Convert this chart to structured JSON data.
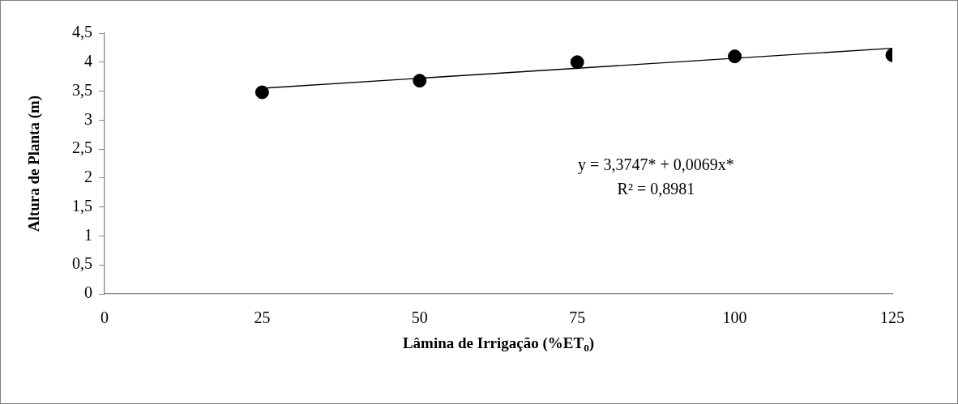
{
  "chart_data": {
    "type": "scatter",
    "xlabel": "Lâmina de Irrigação (%ET$_{0}$)",
    "ylabel": "Altura de Planta (m)",
    "x": [
      25,
      50,
      75,
      100,
      125
    ],
    "series": [
      {
        "color": "#000000",
        "values": [
          3.48,
          3.68,
          4.0,
          4.1,
          4.12
        ]
      },
      {
        "type": "line",
        "color": "#000000",
        "x": [
          25,
          125
        ],
        "values": [
          3.55,
          4.24
        ],
        "marker": "none"
      }
    ],
    "xlim": [
      0,
      125
    ],
    "xticks": [
      0,
      25,
      50,
      75,
      100,
      125
    ],
    "ylim": [
      0,
      4.5
    ],
    "yticks": [
      0,
      {
        "value": 0.5,
        "label": "0,5"
      },
      1,
      {
        "value": 1.5,
        "label": "1,5"
      },
      2,
      {
        "value": 2.5,
        "label": "2,5"
      },
      3,
      {
        "value": 3.5,
        "label": "3,5"
      },
      4,
      {
        "value": 4.5,
        "label": "4,5"
      }
    ],
    "grid": false,
    "legend": false,
    "marker": "circle",
    "annotations": [
      "y = 3,3747* + 0,0069x*",
      "R² = 0,8981"
    ]
  }
}
